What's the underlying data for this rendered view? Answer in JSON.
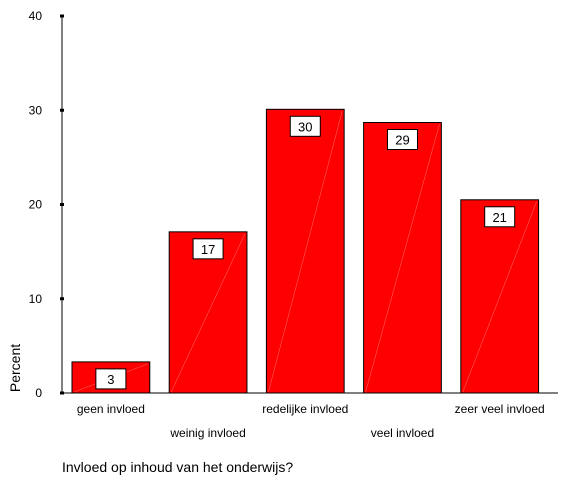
{
  "chart_data": {
    "type": "bar",
    "categories": [
      "geen invloed",
      "weinig invloed",
      "redelijke invloed",
      "veel invloed",
      "zeer veel invloed"
    ],
    "values": [
      3.3,
      17.1,
      30.1,
      28.7,
      20.5
    ],
    "data_labels": [
      "3",
      "17",
      "30",
      "29",
      "21"
    ],
    "xlabel": "Invloed op inhoud van het onderwijs?",
    "ylabel": "Percent",
    "ylim": [
      0,
      40
    ],
    "yticks": [
      0,
      10,
      20,
      30,
      40
    ],
    "grid": false,
    "colors": {
      "bar_fill": "#ff0000",
      "bar_stroke": "#000000",
      "label_box_fill": "#ffffff",
      "axis": "#000000"
    }
  }
}
